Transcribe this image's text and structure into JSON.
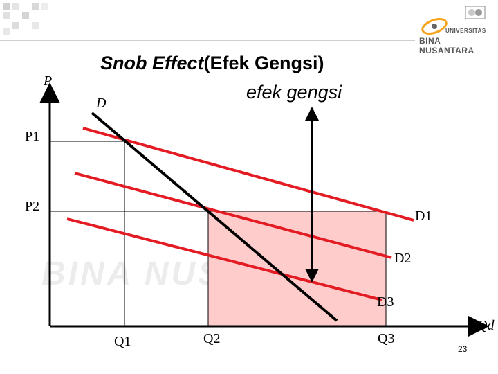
{
  "slide": {
    "title_italic": "Snob Effect",
    "title_rest": "(Efek Gengsi)",
    "subtitle": "efek gengsi",
    "page_number": "23"
  },
  "logo": {
    "line1": "UNIVERSITAS",
    "line2": "BINA NUSANTARA"
  },
  "watermark": {
    "line1": "BINA NUSANTARA"
  },
  "diagram": {
    "y_axis_label": "P",
    "x_axis_label": "Qd",
    "price_labels": [
      "P1",
      "P2"
    ],
    "quantity_labels": [
      "Q1",
      "Q2",
      "Q3"
    ],
    "demand_label": "D",
    "shifted_demand_labels": [
      "D1",
      "D2",
      "D3"
    ],
    "colors": {
      "shifted_demand": "#e31c23",
      "market_demand": "#000000",
      "shaded_area": "#ffcccc",
      "axes": "#000000"
    }
  }
}
